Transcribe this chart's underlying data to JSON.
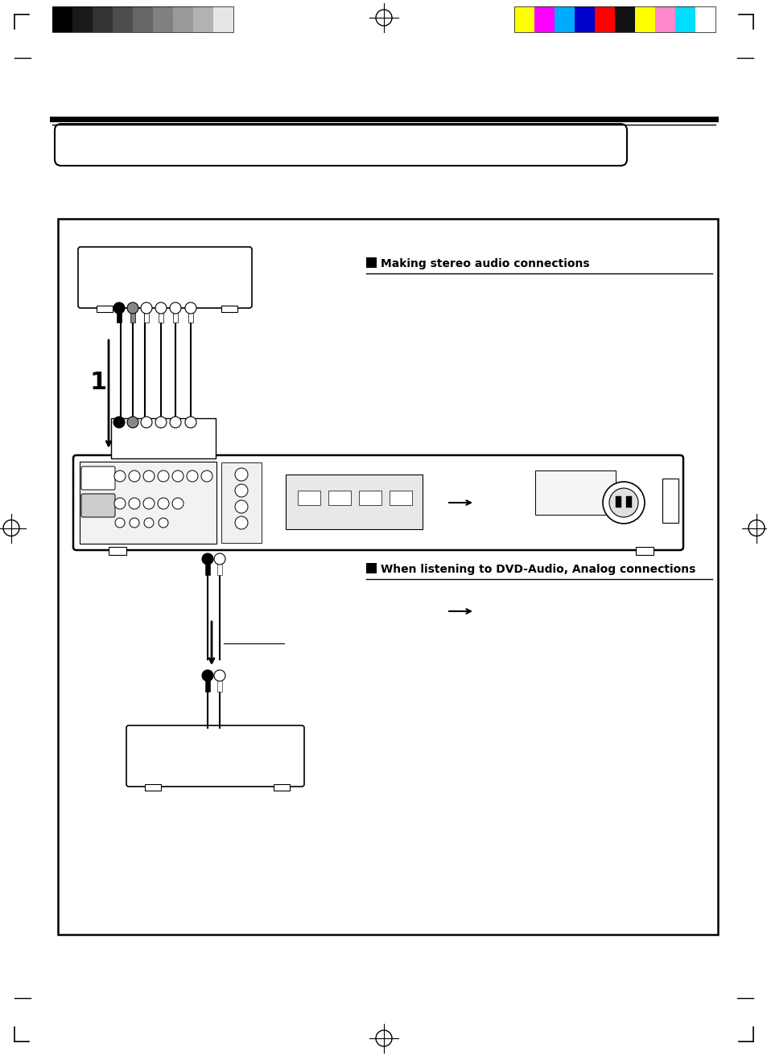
{
  "page_bg": "#ffffff",
  "fig_width": 9.54,
  "fig_height": 13.13,
  "dpi": 100,
  "gray_colors": [
    "#000000",
    "#1a1a1a",
    "#333333",
    "#4d4d4d",
    "#666666",
    "#808080",
    "#999999",
    "#b3b3b3",
    "#cccccc",
    "#e6e6e6"
  ],
  "color_bars": [
    "#ffff00",
    "#ff00ff",
    "#00aaff",
    "#0000cc",
    "#ff0000",
    "#111111",
    "#ffff00",
    "#ff88cc",
    "#00ddff",
    "#ffffff"
  ],
  "section1_title": "Making stereo audio connections",
  "section2_title": "When listening to DVD-Audio, Analog connections"
}
